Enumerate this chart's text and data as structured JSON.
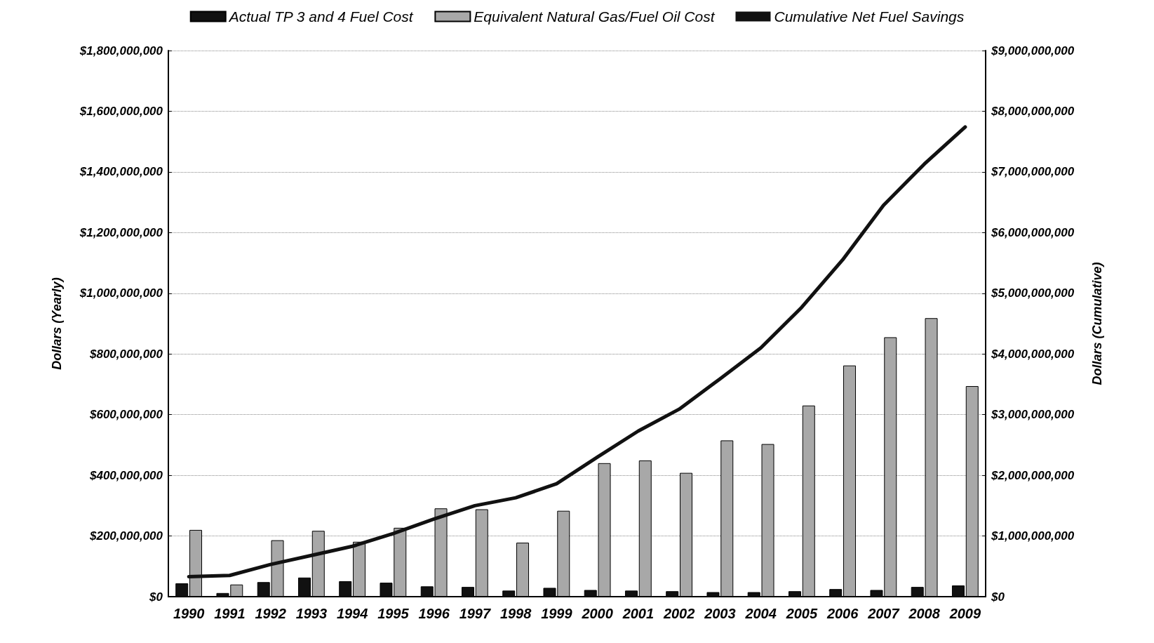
{
  "chart_data": {
    "type": "bar",
    "categories": [
      "1990",
      "1991",
      "1992",
      "1993",
      "1994",
      "1995",
      "1996",
      "1997",
      "1998",
      "1999",
      "2000",
      "2001",
      "2002",
      "2003",
      "2004",
      "2005",
      "2006",
      "2007",
      "2008",
      "2009"
    ],
    "ylabel": "Dollars (Yearly)",
    "y2label": "Dollars (Cumulative)",
    "series": [
      {
        "name": "Actual TP 3 and 4 Fuel Cost",
        "color": "#111111",
        "values": [
          44000000,
          12000000,
          48000000,
          63000000,
          51000000,
          46000000,
          34000000,
          32000000,
          20000000,
          29000000,
          22000000,
          20000000,
          18000000,
          15000000,
          15000000,
          18000000,
          25000000,
          22000000,
          32000000,
          37000000
        ]
      },
      {
        "name": "Equivalent Natural Gas/Fuel Oil Cost",
        "color": "#a8a8a8",
        "values": [
          220000000,
          40000000,
          186000000,
          217000000,
          181000000,
          227000000,
          291000000,
          288000000,
          178000000,
          283000000,
          440000000,
          449000000,
          408000000,
          515000000,
          503000000,
          630000000,
          762000000,
          855000000,
          918000000,
          694000000
        ]
      },
      {
        "name": "Cumulative Net Fuel Savings",
        "type": "line",
        "axis": "y2",
        "color": "#111111",
        "values": [
          330000000,
          350000000,
          530000000,
          680000000,
          830000000,
          1040000000,
          1280000000,
          1500000000,
          1630000000,
          1860000000,
          2300000000,
          2730000000,
          3090000000,
          3590000000,
          4100000000,
          4770000000,
          5550000000,
          6450000000,
          7130000000,
          7740000000
        ]
      }
    ],
    "ylim": [
      0,
      1800000000
    ],
    "yticks": [
      {
        "value": 0,
        "label": "$0"
      },
      {
        "value": 200000000,
        "label": "$200,000,000"
      },
      {
        "value": 400000000,
        "label": "$400,000,000"
      },
      {
        "value": 600000000,
        "label": "$600,000,000"
      },
      {
        "value": 800000000,
        "label": "$800,000,000"
      },
      {
        "value": 1000000000,
        "label": "$1,000,000,000"
      },
      {
        "value": 1200000000,
        "label": "$1,200,000,000"
      },
      {
        "value": 1400000000,
        "label": "$1,400,000,000"
      },
      {
        "value": 1600000000,
        "label": "$1,600,000,000"
      },
      {
        "value": 1800000000,
        "label": "$1,800,000,000"
      }
    ],
    "y2lim": [
      0,
      9000000000
    ],
    "y2ticks": [
      {
        "value": 0,
        "label": "$0"
      },
      {
        "value": 1000000000,
        "label": "$1,000,000,000"
      },
      {
        "value": 2000000000,
        "label": "$2,000,000,000"
      },
      {
        "value": 3000000000,
        "label": "$3,000,000,000"
      },
      {
        "value": 4000000000,
        "label": "$4,000,000,000"
      },
      {
        "value": 5000000000,
        "label": "$5,000,000,000"
      },
      {
        "value": 6000000000,
        "label": "$6,000,000,000"
      },
      {
        "value": 7000000000,
        "label": "$7,000,000,000"
      },
      {
        "value": 8000000000,
        "label": "$8,000,000,000"
      },
      {
        "value": 9000000000,
        "label": "$9,000,000,000"
      }
    ],
    "grid": "y",
    "legend": "top",
    "marker": "none",
    "line_style": "solid"
  }
}
